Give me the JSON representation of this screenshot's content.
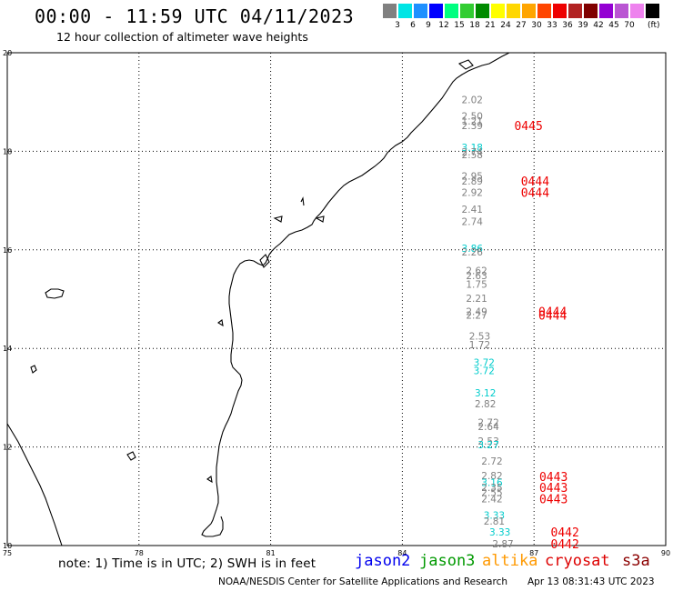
{
  "title": "00:00 - 11:59 UTC 04/11/2023",
  "subtitle": "12 hour collection of altimeter wave heights",
  "scale": {
    "colors": [
      "#808080",
      "#00e5e5",
      "#1e90ff",
      "#0000ff",
      "#00ff7f",
      "#32cd32",
      "#008b00",
      "#ffff00",
      "#ffd700",
      "#ffa500",
      "#ff4500",
      "#ee0000",
      "#b22222",
      "#800000",
      "#9400d3",
      "#ba55d3",
      "#ee82ee",
      "#000000"
    ],
    "labels": [
      "3",
      "6",
      "9",
      "12",
      "15",
      "18",
      "21",
      "24",
      "27",
      "30",
      "33",
      "36",
      "39",
      "42",
      "45",
      "70"
    ],
    "unit": "(ft)"
  },
  "axes": {
    "x_ticks": [
      "75",
      "78",
      "81",
      "84",
      "87",
      "90"
    ],
    "y_ticks": [
      "20",
      "18",
      "16",
      "14",
      "12",
      "10"
    ]
  },
  "map_data": {
    "lon_range": [
      75,
      90
    ],
    "lat_range": [
      10,
      20
    ],
    "grid": "dotted",
    "observations": [
      {
        "lon": 85.35,
        "lat": 19.05,
        "value": "2.02",
        "sat": "altika"
      },
      {
        "lon": 85.35,
        "lat": 18.72,
        "value": "2.50",
        "sat": "altika"
      },
      {
        "lon": 85.35,
        "lat": 18.62,
        "value": "1.21",
        "sat": "altika"
      },
      {
        "lon": 85.35,
        "lat": 18.52,
        "value": "2.39",
        "sat": "altika"
      },
      {
        "lon": 85.35,
        "lat": 18.08,
        "value": "3.18",
        "sat": "jason2"
      },
      {
        "lon": 85.35,
        "lat": 17.99,
        "value": "2.74",
        "sat": "altika"
      },
      {
        "lon": 85.35,
        "lat": 17.93,
        "value": "2.58",
        "sat": "altika"
      },
      {
        "lon": 85.35,
        "lat": 17.5,
        "value": "2.95",
        "sat": "altika"
      },
      {
        "lon": 85.35,
        "lat": 17.4,
        "value": "2.89",
        "sat": "altika"
      },
      {
        "lon": 85.35,
        "lat": 17.17,
        "value": "2.92",
        "sat": "altika"
      },
      {
        "lon": 85.35,
        "lat": 16.83,
        "value": "2.41",
        "sat": "altika"
      },
      {
        "lon": 85.35,
        "lat": 16.58,
        "value": "2.74",
        "sat": "altika"
      },
      {
        "lon": 85.35,
        "lat": 16.03,
        "value": "3.86",
        "sat": "jason2"
      },
      {
        "lon": 85.35,
        "lat": 15.96,
        "value": "2.26",
        "sat": "altika"
      },
      {
        "lon": 85.45,
        "lat": 15.58,
        "value": "2.62",
        "sat": "altika"
      },
      {
        "lon": 85.45,
        "lat": 15.48,
        "value": "2.63",
        "sat": "altika"
      },
      {
        "lon": 85.45,
        "lat": 15.3,
        "value": "1.75",
        "sat": "altika"
      },
      {
        "lon": 85.45,
        "lat": 15.02,
        "value": "2.21",
        "sat": "altika"
      },
      {
        "lon": 85.45,
        "lat": 14.75,
        "value": "2.49",
        "sat": "altika"
      },
      {
        "lon": 85.45,
        "lat": 14.68,
        "value": "2.27",
        "sat": "altika"
      },
      {
        "lon": 85.52,
        "lat": 14.25,
        "value": "2.53",
        "sat": "altika"
      },
      {
        "lon": 85.52,
        "lat": 14.08,
        "value": "1.72",
        "sat": "altika"
      },
      {
        "lon": 85.62,
        "lat": 13.72,
        "value": "3.72",
        "sat": "jason2"
      },
      {
        "lon": 85.62,
        "lat": 13.55,
        "value": "3.72",
        "sat": "jason2"
      },
      {
        "lon": 85.65,
        "lat": 13.1,
        "value": "3.12",
        "sat": "jason2"
      },
      {
        "lon": 85.65,
        "lat": 12.88,
        "value": "2.82",
        "sat": "altika"
      },
      {
        "lon": 85.72,
        "lat": 12.5,
        "value": "2.72",
        "sat": "altika"
      },
      {
        "lon": 85.72,
        "lat": 12.42,
        "value": "2.64",
        "sat": "altika"
      },
      {
        "lon": 85.72,
        "lat": 12.12,
        "value": "2.53",
        "sat": "altika"
      },
      {
        "lon": 85.72,
        "lat": 12.05,
        "value": "3.27",
        "sat": "jason2"
      },
      {
        "lon": 85.8,
        "lat": 11.72,
        "value": "2.72",
        "sat": "altika"
      },
      {
        "lon": 85.8,
        "lat": 11.42,
        "value": "2.82",
        "sat": "altika"
      },
      {
        "lon": 85.8,
        "lat": 11.28,
        "value": "3.16",
        "sat": "jason2"
      },
      {
        "lon": 85.8,
        "lat": 11.18,
        "value": "2.35",
        "sat": "altika"
      },
      {
        "lon": 85.8,
        "lat": 11.08,
        "value": "2.55",
        "sat": "altika"
      },
      {
        "lon": 85.8,
        "lat": 10.95,
        "value": "2.42",
        "sat": "altika"
      },
      {
        "lon": 85.85,
        "lat": 10.62,
        "value": "3.33",
        "sat": "jason2"
      },
      {
        "lon": 85.85,
        "lat": 10.5,
        "value": "2.81",
        "sat": "altika"
      },
      {
        "lon": 85.98,
        "lat": 10.28,
        "value": "3.33",
        "sat": "jason2"
      },
      {
        "lon": 86.05,
        "lat": 10.04,
        "value": "2.87",
        "sat": "altika"
      }
    ],
    "time_labels": [
      {
        "lon": 86.55,
        "lat": 18.52,
        "text": "0445"
      },
      {
        "lon": 86.7,
        "lat": 17.4,
        "text": "0444"
      },
      {
        "lon": 86.7,
        "lat": 17.17,
        "text": "0444"
      },
      {
        "lon": 87.1,
        "lat": 14.75,
        "text": "0444"
      },
      {
        "lon": 87.1,
        "lat": 14.68,
        "text": "0444"
      },
      {
        "lon": 87.12,
        "lat": 11.4,
        "text": "0443"
      },
      {
        "lon": 87.12,
        "lat": 11.18,
        "text": "0443"
      },
      {
        "lon": 87.12,
        "lat": 10.95,
        "text": "0443"
      },
      {
        "lon": 87.38,
        "lat": 10.28,
        "text": "0442"
      },
      {
        "lon": 87.38,
        "lat": 10.04,
        "text": "0442"
      }
    ],
    "sat_colors": {
      "jason2": "#00cccc",
      "altika": "#808080"
    },
    "time_color": "#ee0000"
  },
  "footnote": "note: 1) Time is in UTC; 2) SWH is in feet",
  "legend": [
    {
      "label": "jason2",
      "color": "#0000ee"
    },
    {
      "label": "jason3",
      "color": "#009900"
    },
    {
      "label": "altika",
      "color": "#ff9900"
    },
    {
      "label": "cryosat",
      "color": "#dd0000"
    },
    {
      "label": "s3a",
      "color": "#8b0000"
    }
  ],
  "credit": "NOAA/NESDIS Center for Satellite Applications and Research",
  "timestamp": "Apr 13 08:31:43 UTC 2023"
}
